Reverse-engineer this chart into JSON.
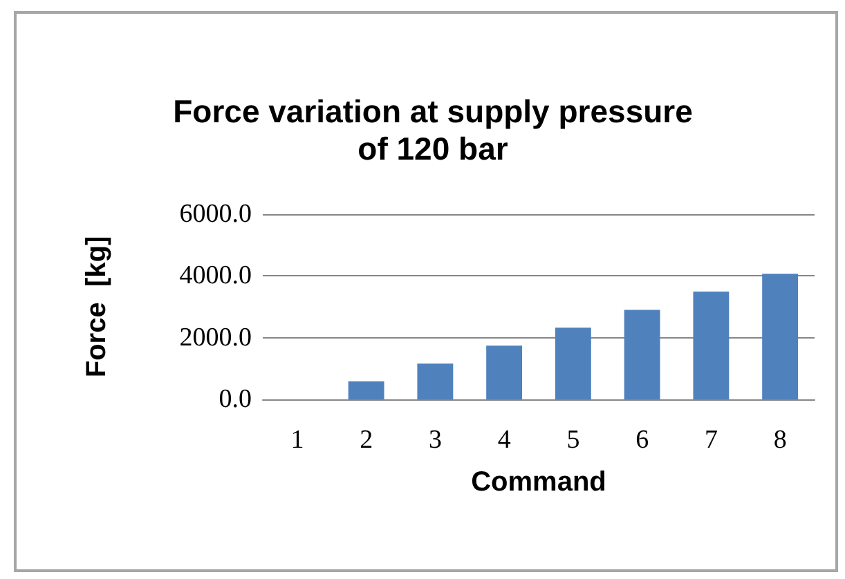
{
  "chart_data": {
    "type": "bar",
    "title": "Force variation at supply pressure\nof 120 bar",
    "xlabel": "Command",
    "ylabel": "Force  [kg]",
    "categories": [
      "1",
      "2",
      "3",
      "4",
      "5",
      "6",
      "7",
      "8"
    ],
    "values": [
      0,
      580,
      1160,
      1740,
      2320,
      2900,
      3490,
      4070
    ],
    "color": "#4f81bd",
    "ylim": [
      0,
      6000
    ],
    "yticks": [
      {
        "value": 0,
        "label": "0.0"
      },
      {
        "value": 2000,
        "label": "2000.0"
      },
      {
        "value": 4000,
        "label": "4000.0"
      },
      {
        "value": 6000,
        "label": "6000.0"
      }
    ],
    "grid": "y"
  }
}
